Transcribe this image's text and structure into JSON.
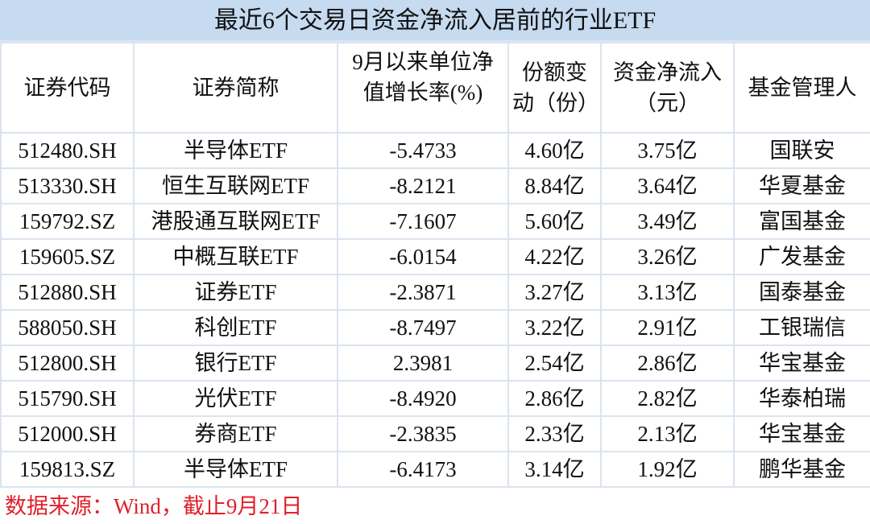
{
  "title": "最近6个交易日资金净流入居前的行业ETF",
  "headers": [
    "证券代码",
    "证券简称",
    "9月以来单位净值增长率(%)",
    "份额变动（份）",
    "资金净流入（元）",
    "基金管理人"
  ],
  "rows": [
    [
      "512480.SH",
      "半导体ETF",
      "-5.4733",
      "4.60亿",
      "3.75亿",
      "国联安"
    ],
    [
      "513330.SH",
      "恒生互联网ETF",
      "-8.2121",
      "8.84亿",
      "3.64亿",
      "华夏基金"
    ],
    [
      "159792.SZ",
      "港股通互联网ETF",
      "-7.1607",
      "5.60亿",
      "3.49亿",
      "富国基金"
    ],
    [
      "159605.SZ",
      "中概互联ETF",
      "-6.0154",
      "4.22亿",
      "3.26亿",
      "广发基金"
    ],
    [
      "512880.SH",
      "证券ETF",
      "-2.3871",
      "3.27亿",
      "3.13亿",
      "国泰基金"
    ],
    [
      "588050.SH",
      "科创ETF",
      "-8.7497",
      "3.22亿",
      "2.91亿",
      "工银瑞信"
    ],
    [
      "512800.SH",
      "银行ETF",
      "2.3981",
      "2.54亿",
      "2.86亿",
      "华宝基金"
    ],
    [
      "515790.SH",
      "光伏ETF",
      "-8.4920",
      "2.86亿",
      "2.82亿",
      "华泰柏瑞"
    ],
    [
      "512000.SH",
      "券商ETF",
      "-2.3835",
      "2.33亿",
      "2.13亿",
      "华宝基金"
    ],
    [
      "159813.SZ",
      "半导体ETF",
      "-6.4173",
      "3.14亿",
      "1.92亿",
      "鹏华基金"
    ]
  ],
  "footer": "数据来源：Wind，截止9月21日",
  "colors": {
    "title_bg": "#c6daf0",
    "border": "#dbe3ef",
    "footer_text": "#e0202a"
  }
}
